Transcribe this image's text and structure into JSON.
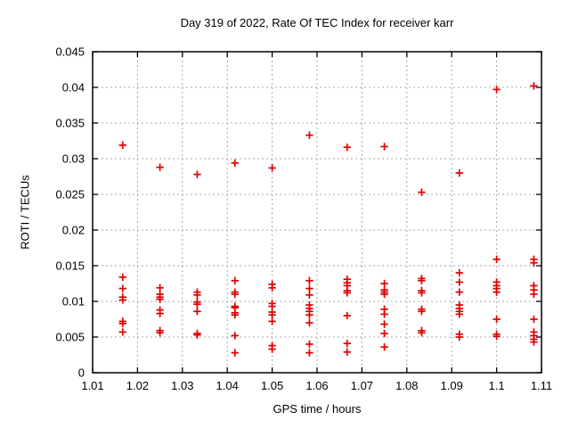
{
  "chart_data": {
    "type": "scatter",
    "title": "Day 319 of 2022, Rate Of TEC Index for receiver karr",
    "xlabel": "GPS time / hours",
    "ylabel": "ROTI / TECUs",
    "xlim": [
      1.01,
      1.11
    ],
    "ylim": [
      0,
      0.045
    ],
    "xticks": [
      1.01,
      1.02,
      1.03,
      1.04,
      1.05,
      1.06,
      1.07,
      1.08,
      1.09,
      1.1,
      1.11
    ],
    "xtick_labels": [
      "1.01",
      "1.02",
      "1.03",
      "1.04",
      "1.05",
      "1.06",
      "1.07",
      "1.08",
      "1.09",
      "1.1",
      "1.11"
    ],
    "yticks": [
      0,
      0.005,
      0.01,
      0.015,
      0.02,
      0.025,
      0.03,
      0.035,
      0.04,
      0.045
    ],
    "ytick_labels": [
      "0",
      "0.005",
      "0.01",
      "0.015",
      "0.02",
      "0.025",
      "0.03",
      "0.035",
      "0.04",
      "0.045"
    ],
    "grid": true,
    "legend": "none",
    "marker": "plus",
    "marker_color": "#e00000",
    "grid_color": "#a8a8a8",
    "axis_color": "#000000",
    "series": [
      {
        "name": "ROTI",
        "points": [
          [
            1.0167,
            0.0319
          ],
          [
            1.0167,
            0.0134
          ],
          [
            1.0167,
            0.0118
          ],
          [
            1.0167,
            0.0106
          ],
          [
            1.0167,
            0.0102
          ],
          [
            1.0167,
            0.0072
          ],
          [
            1.0167,
            0.0069
          ],
          [
            1.0167,
            0.0057
          ],
          [
            1.025,
            0.0288
          ],
          [
            1.025,
            0.0119
          ],
          [
            1.025,
            0.011
          ],
          [
            1.025,
            0.0106
          ],
          [
            1.025,
            0.0103
          ],
          [
            1.025,
            0.0088
          ],
          [
            1.025,
            0.0083
          ],
          [
            1.025,
            0.0059
          ],
          [
            1.025,
            0.0056
          ],
          [
            1.0333,
            0.0278
          ],
          [
            1.0333,
            0.0113
          ],
          [
            1.0333,
            0.0109
          ],
          [
            1.0333,
            0.0099
          ],
          [
            1.0333,
            0.0096
          ],
          [
            1.0333,
            0.0086
          ],
          [
            1.0333,
            0.0055
          ],
          [
            1.0333,
            0.0053
          ],
          [
            1.0417,
            0.0294
          ],
          [
            1.0417,
            0.0129
          ],
          [
            1.0417,
            0.0113
          ],
          [
            1.0417,
            0.011
          ],
          [
            1.0417,
            0.0093
          ],
          [
            1.0417,
            0.0091
          ],
          [
            1.0417,
            0.0084
          ],
          [
            1.0417,
            0.0081
          ],
          [
            1.0417,
            0.0052
          ],
          [
            1.0417,
            0.0028
          ],
          [
            1.05,
            0.0287
          ],
          [
            1.05,
            0.0124
          ],
          [
            1.05,
            0.0119
          ],
          [
            1.05,
            0.0097
          ],
          [
            1.05,
            0.0093
          ],
          [
            1.05,
            0.0085
          ],
          [
            1.05,
            0.0081
          ],
          [
            1.05,
            0.0072
          ],
          [
            1.05,
            0.0038
          ],
          [
            1.05,
            0.0033
          ],
          [
            1.0583,
            0.0333
          ],
          [
            1.0583,
            0.0129
          ],
          [
            1.0583,
            0.0118
          ],
          [
            1.0583,
            0.0109
          ],
          [
            1.0583,
            0.0095
          ],
          [
            1.0583,
            0.009
          ],
          [
            1.0583,
            0.0086
          ],
          [
            1.0583,
            0.0081
          ],
          [
            1.0583,
            0.007
          ],
          [
            1.0583,
            0.004
          ],
          [
            1.0583,
            0.0028
          ],
          [
            1.0667,
            0.0316
          ],
          [
            1.0667,
            0.0131
          ],
          [
            1.0667,
            0.0126
          ],
          [
            1.0667,
            0.0122
          ],
          [
            1.0667,
            0.0115
          ],
          [
            1.0667,
            0.0112
          ],
          [
            1.0667,
            0.008
          ],
          [
            1.0667,
            0.0041
          ],
          [
            1.0667,
            0.0029
          ],
          [
            1.075,
            0.0317
          ],
          [
            1.075,
            0.0125
          ],
          [
            1.075,
            0.0116
          ],
          [
            1.075,
            0.0113
          ],
          [
            1.075,
            0.011
          ],
          [
            1.075,
            0.0089
          ],
          [
            1.075,
            0.0082
          ],
          [
            1.075,
            0.0068
          ],
          [
            1.075,
            0.0055
          ],
          [
            1.075,
            0.0036
          ],
          [
            1.0833,
            0.0253
          ],
          [
            1.0833,
            0.0132
          ],
          [
            1.0833,
            0.0129
          ],
          [
            1.0833,
            0.0115
          ],
          [
            1.0833,
            0.0112
          ],
          [
            1.0833,
            0.0089
          ],
          [
            1.0833,
            0.0086
          ],
          [
            1.0833,
            0.0059
          ],
          [
            1.0833,
            0.0056
          ],
          [
            1.0917,
            0.028
          ],
          [
            1.0917,
            0.014
          ],
          [
            1.0917,
            0.0127
          ],
          [
            1.0917,
            0.0113
          ],
          [
            1.0917,
            0.0095
          ],
          [
            1.0917,
            0.009
          ],
          [
            1.0917,
            0.0086
          ],
          [
            1.0917,
            0.0082
          ],
          [
            1.0917,
            0.0054
          ],
          [
            1.0917,
            0.005
          ],
          [
            1.1,
            0.0397
          ],
          [
            1.1,
            0.0159
          ],
          [
            1.1,
            0.0127
          ],
          [
            1.1,
            0.0122
          ],
          [
            1.1,
            0.0118
          ],
          [
            1.1,
            0.0113
          ],
          [
            1.1,
            0.0075
          ],
          [
            1.1,
            0.0054
          ],
          [
            1.1,
            0.0051
          ],
          [
            1.1083,
            0.0402
          ],
          [
            1.1083,
            0.0159
          ],
          [
            1.1083,
            0.0154
          ],
          [
            1.1083,
            0.0122
          ],
          [
            1.1083,
            0.0116
          ],
          [
            1.1083,
            0.011
          ],
          [
            1.1083,
            0.0075
          ],
          [
            1.1083,
            0.0057
          ],
          [
            1.1083,
            0.0052
          ],
          [
            1.1083,
            0.0047
          ],
          [
            1.1083,
            0.0043
          ]
        ]
      }
    ]
  }
}
